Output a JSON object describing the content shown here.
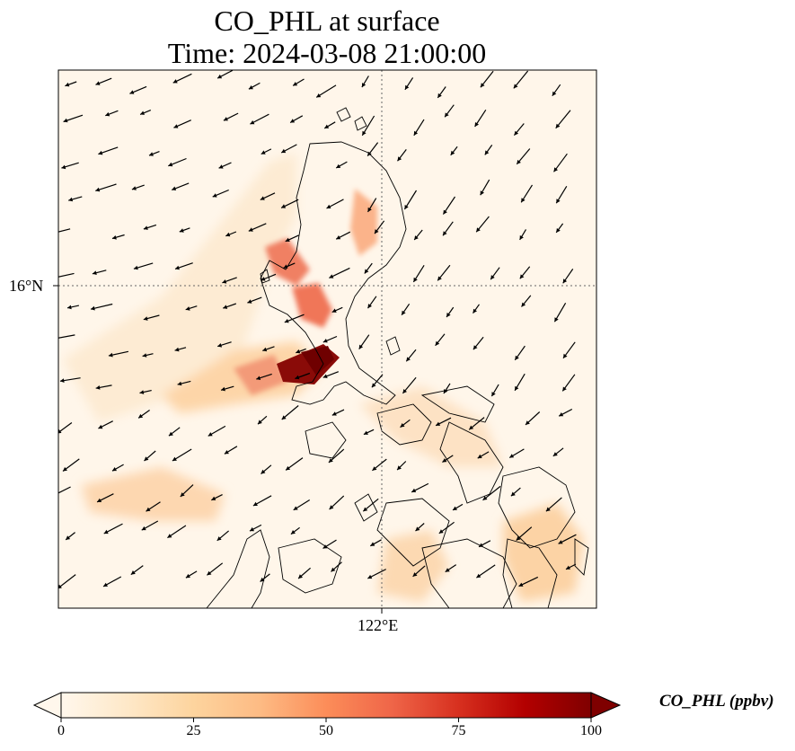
{
  "title_line1": "CO_PHL at surface",
  "title_line2": "Time: 2024-03-08 21:00:00",
  "map": {
    "lat_gridline_label": "16°N",
    "lon_gridline_label": "122°E",
    "field_colormap": "OrRd",
    "vector_field": "wind arrows"
  },
  "colorbar": {
    "title": "CO_PHL (ppbv)",
    "ticks": [
      "0",
      "25",
      "50",
      "75",
      "100"
    ],
    "min": 0,
    "max": 100,
    "colors": [
      "#fff7ec",
      "#fee8c8",
      "#fdd49e",
      "#fdbb84",
      "#fc8d59",
      "#ef6548",
      "#d7301f",
      "#b30000",
      "#7f0000"
    ],
    "extend": "both"
  }
}
